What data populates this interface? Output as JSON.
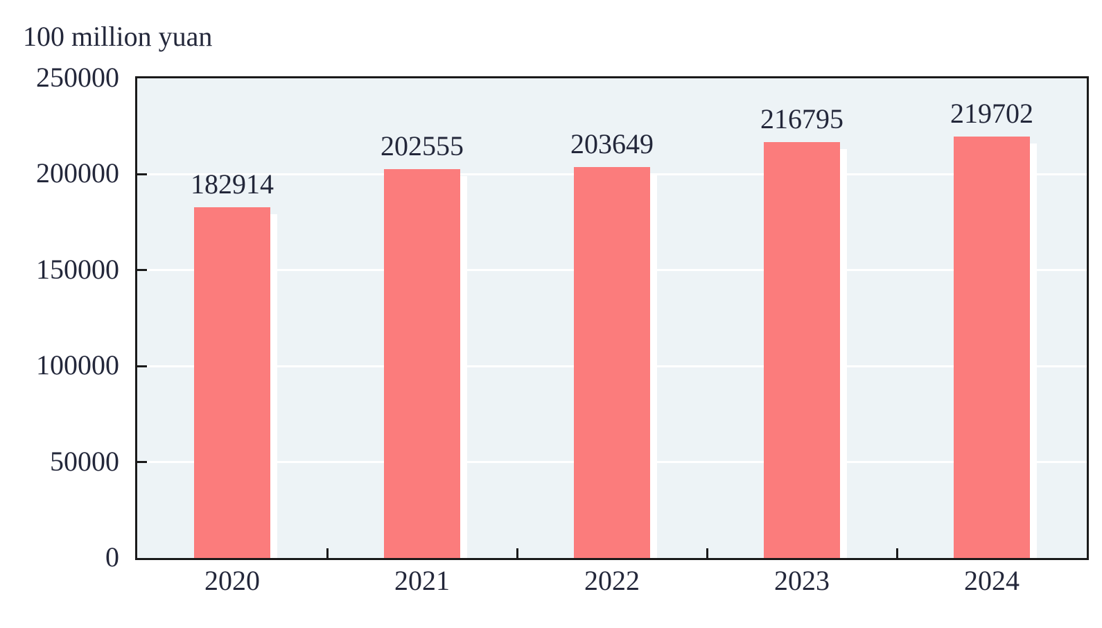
{
  "chart_data": {
    "type": "bar",
    "title": "",
    "unit_label": "100 million yuan",
    "categories": [
      "2020",
      "2021",
      "2022",
      "2023",
      "2024"
    ],
    "values": [
      182914,
      202555,
      203649,
      216795,
      219702
    ],
    "series": [
      {
        "name": "value",
        "values": [
          182914,
          202555,
          203649,
          216795,
          219702
        ]
      }
    ],
    "xlabel": "",
    "ylabel": "100 million yuan",
    "ylim": [
      0,
      250000
    ],
    "ytick_step": 50000,
    "yticks": [
      0,
      50000,
      100000,
      150000,
      200000,
      250000
    ],
    "ytick_labels": [
      "0",
      "50000",
      "100000",
      "150000",
      "200000",
      "250000"
    ],
    "grid": true,
    "gridline_orientation": "horizontal",
    "legend": "none"
  },
  "colors": {
    "bar_fill": "#FB7C7C",
    "bar_shadow": "#FFFFFF",
    "plot_background": "#EDF3F6",
    "gridline": "#FFFFFF",
    "axis": "#1A1A1A",
    "text": "#23273A",
    "page_background": "#FFFFFF"
  }
}
